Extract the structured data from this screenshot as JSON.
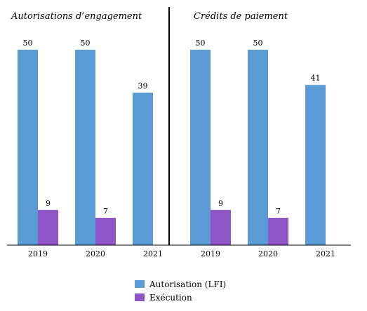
{
  "chart_data": [
    {
      "type": "bar",
      "title": "Autorisations d’engagement",
      "categories": [
        "2019",
        "2020",
        "2021"
      ],
      "series": [
        {
          "name": "Autorisation (LFI)",
          "values": [
            50,
            50,
            39
          ]
        },
        {
          "name": "Exécution",
          "values": [
            9,
            7,
            null
          ]
        }
      ],
      "ylim": [
        0,
        50
      ]
    },
    {
      "type": "bar",
      "title": "Crédits de paiement",
      "categories": [
        "2019",
        "2020",
        "2021"
      ],
      "series": [
        {
          "name": "Autorisation (LFI)",
          "values": [
            50,
            50,
            41
          ]
        },
        {
          "name": "Exécution",
          "values": [
            9,
            7,
            null
          ]
        }
      ],
      "ylim": [
        0,
        50
      ]
    }
  ],
  "legend": {
    "placement": "bottom-center",
    "items": [
      {
        "label": "Autorisation (LFI)",
        "color": "#5b9bd5"
      },
      {
        "label": "Exécution",
        "color": "#8e55c6"
      }
    ]
  },
  "colors": {
    "lfi": "#5b9bd5",
    "exec": "#8e55c6",
    "axis": "#000000",
    "divider": "#000000"
  }
}
